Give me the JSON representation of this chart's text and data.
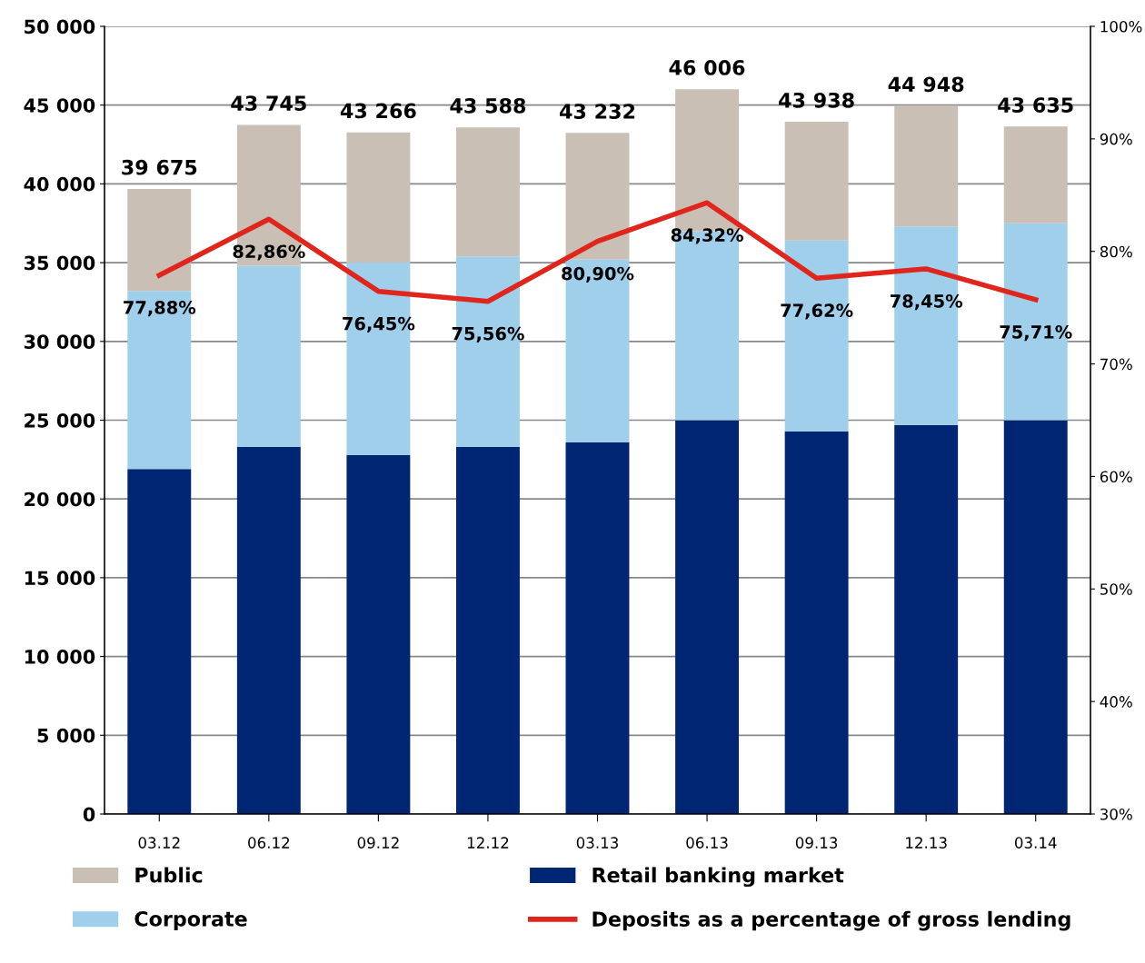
{
  "chart_data": {
    "type": "bar",
    "stacked": true,
    "categories": [
      "03.12",
      "06.12",
      "09.12",
      "12.12",
      "03.13",
      "06.13",
      "09.13",
      "12.13",
      "03.14"
    ],
    "series": [
      {
        "name": "Retail banking market",
        "color": "#002673",
        "values": [
          21900,
          23300,
          22800,
          23300,
          23600,
          25000,
          24300,
          24700,
          25000
        ]
      },
      {
        "name": "Corporate",
        "color": "#9fcfea",
        "values": [
          11300,
          11500,
          12200,
          12100,
          11600,
          12000,
          12100,
          12600,
          12500
        ]
      },
      {
        "name": "Public",
        "color": "#c9bfb5",
        "values": [
          6475,
          8945,
          8266,
          8188,
          8032,
          9006,
          7538,
          7648,
          6135
        ]
      },
      {
        "name": "Deposits as a percentage of gross lending",
        "type": "line",
        "axis": "y2",
        "color": "#e0261c",
        "values": [
          77.88,
          82.86,
          76.45,
          75.56,
          80.9,
          84.32,
          77.62,
          78.45,
          75.71
        ],
        "value_labels": [
          "77,88%",
          "82,86%",
          "76,45%",
          "75,56%",
          "80,90%",
          "84,32%",
          "77,62%",
          "78,45%",
          "75,71%"
        ]
      }
    ],
    "totals": [
      "39 675",
      "43 745",
      "43 266",
      "43 588",
      "43 232",
      "46 006",
      "43 938",
      "44 948",
      "43 635"
    ],
    "ylim": [
      0,
      50000
    ],
    "yticks": [
      {
        "value": 0,
        "label": "0"
      },
      {
        "value": 5000,
        "label": "5 000"
      },
      {
        "value": 10000,
        "label": "10 000"
      },
      {
        "value": 15000,
        "label": "15 000"
      },
      {
        "value": 20000,
        "label": "20 000"
      },
      {
        "value": 25000,
        "label": "25 000"
      },
      {
        "value": 30000,
        "label": "30 000"
      },
      {
        "value": 35000,
        "label": "35 000"
      },
      {
        "value": 40000,
        "label": "40 000"
      },
      {
        "value": 45000,
        "label": "45 000"
      },
      {
        "value": 50000,
        "label": "50 000"
      }
    ],
    "y2lim": [
      30,
      100
    ],
    "y2ticks": [
      {
        "value": 30,
        "label": "30%"
      },
      {
        "value": 40,
        "label": "40%"
      },
      {
        "value": 50,
        "label": "50%"
      },
      {
        "value": 60,
        "label": "60%"
      },
      {
        "value": 70,
        "label": "70%"
      },
      {
        "value": 80,
        "label": "80%"
      },
      {
        "value": 90,
        "label": "90%"
      },
      {
        "value": 100,
        "label": "100%"
      }
    ],
    "grid": "y",
    "legend": "bottom",
    "line_style": "solid",
    "marker": "none"
  }
}
